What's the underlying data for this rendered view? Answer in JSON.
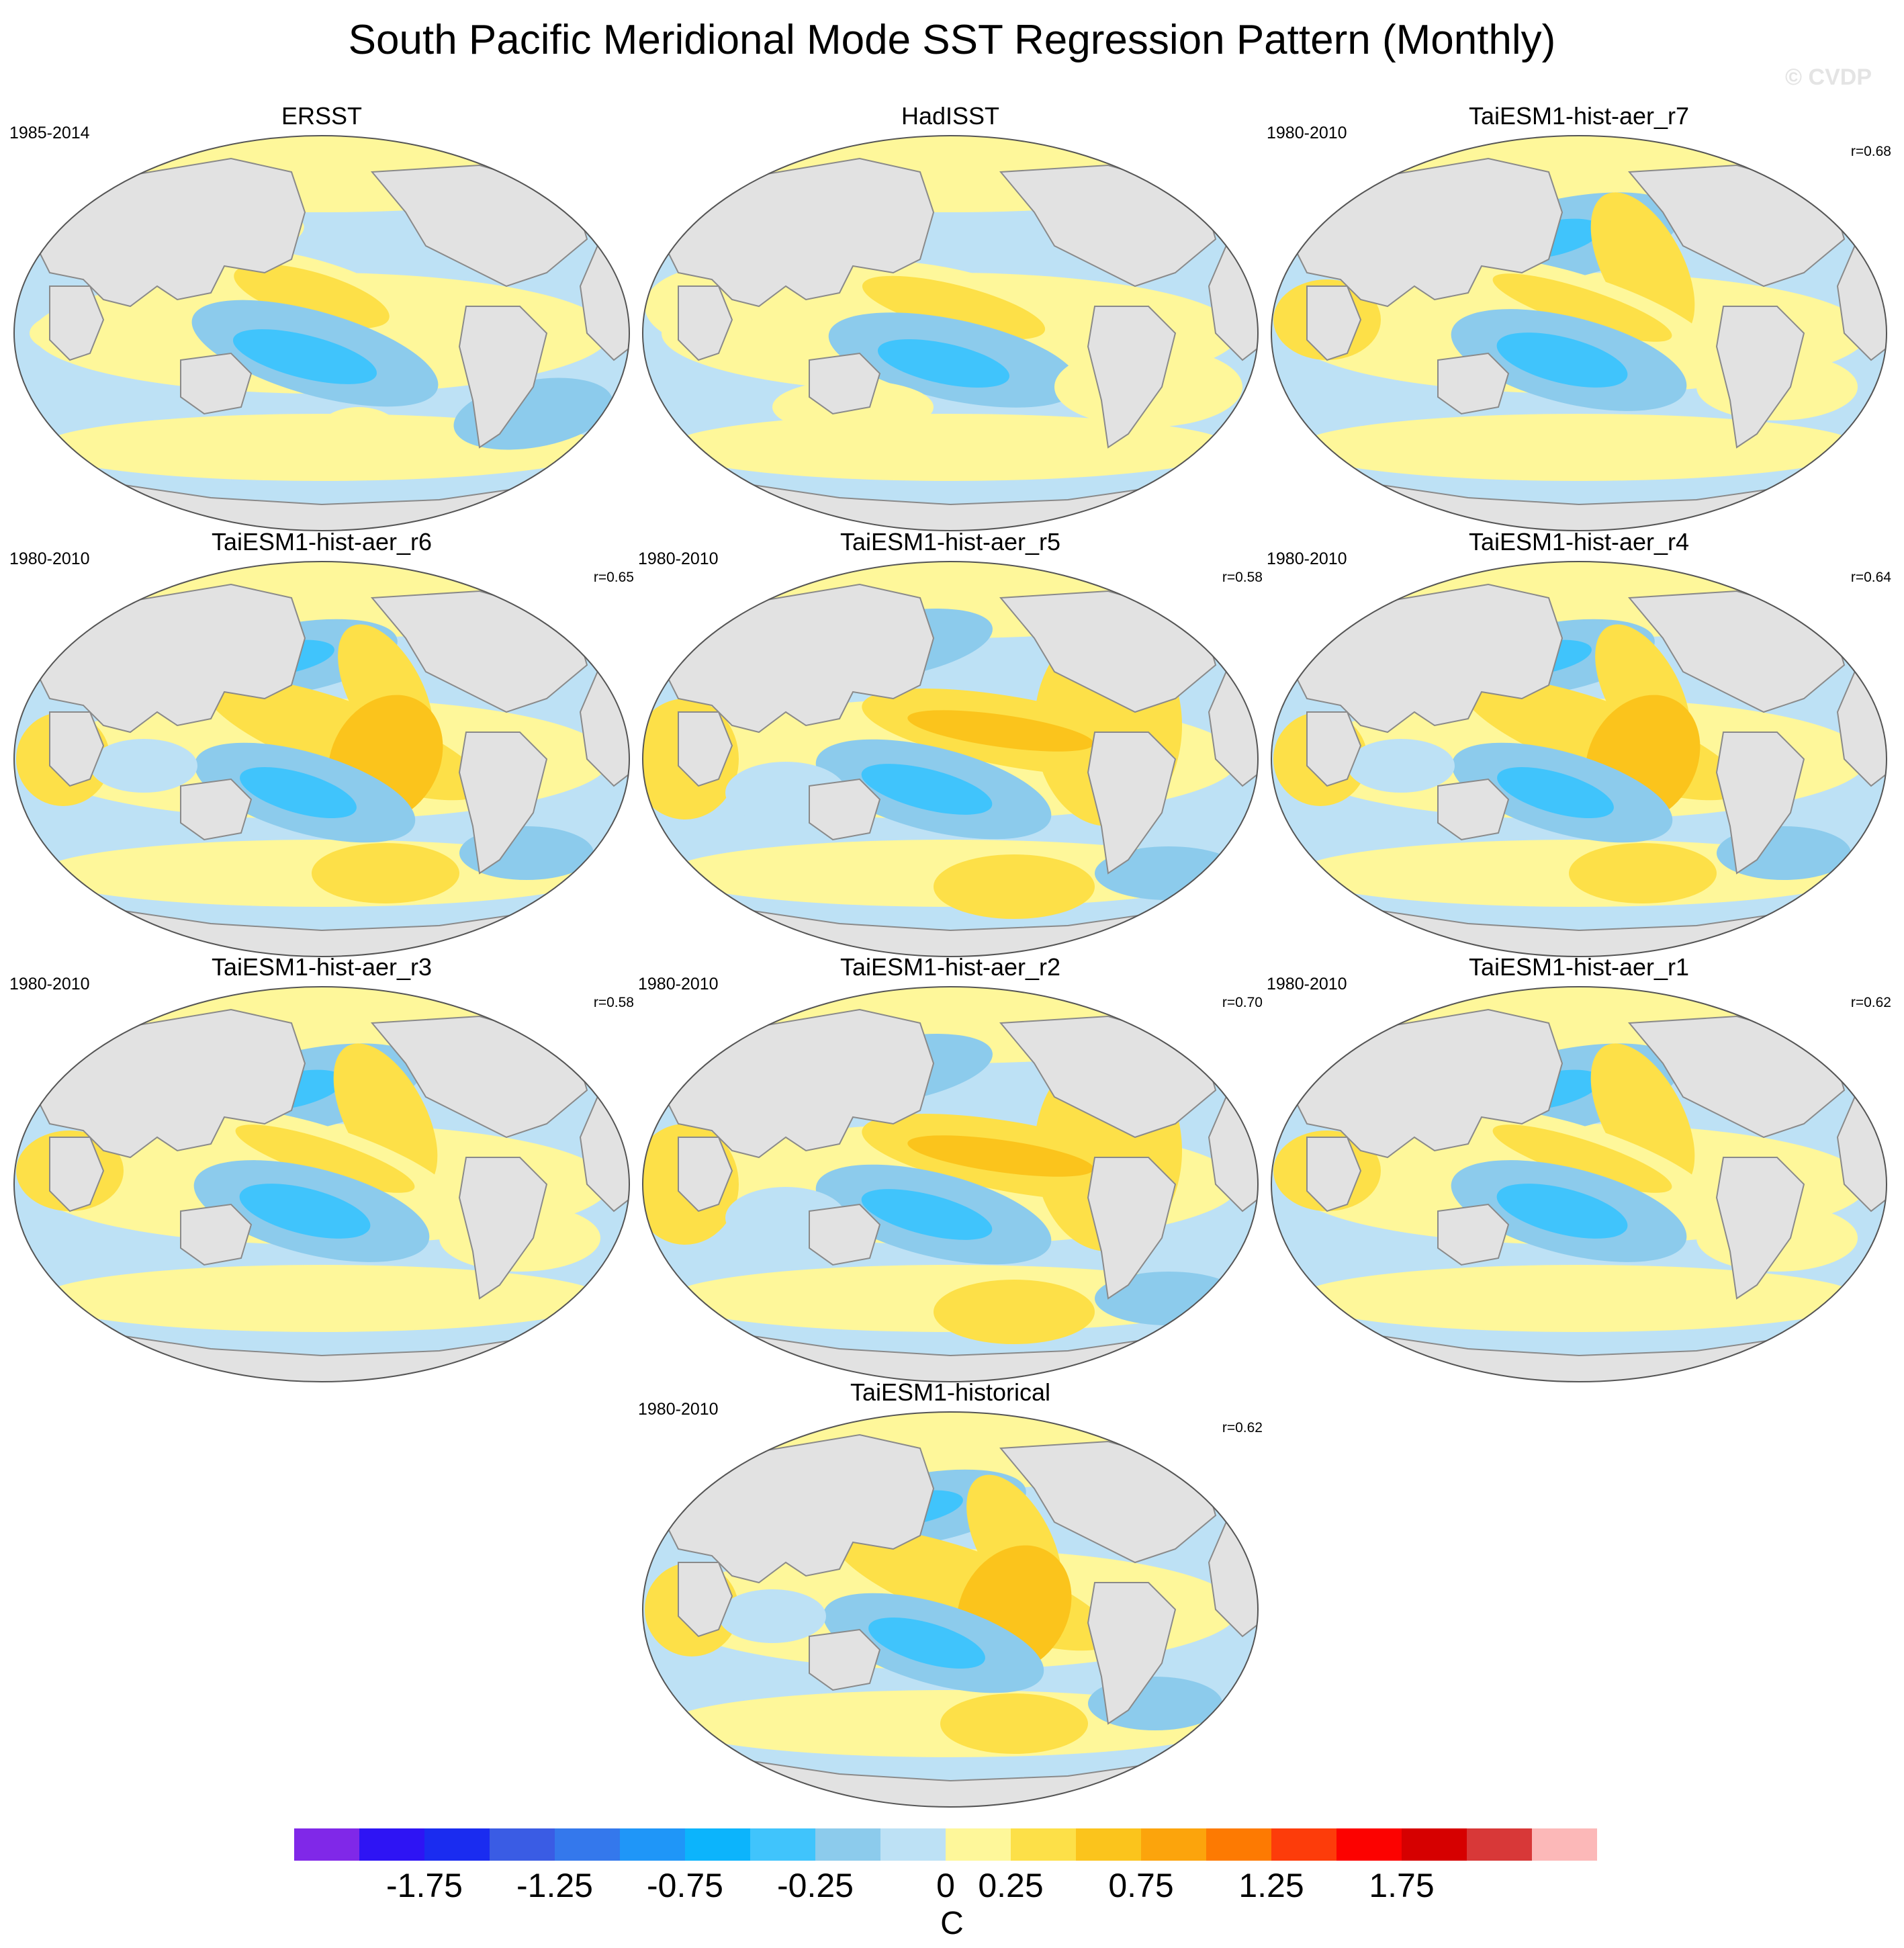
{
  "title": "South Pacific Meridional Mode SST Regression Pattern (Monthly)",
  "watermark": "© CVDP",
  "colors": {
    "land": "#e2e2e2",
    "coast": "#8a8a8a",
    "ocean_neutral_neg": "#bde1f5",
    "ocean_neutral_pos": "#fef79a"
  },
  "panels": [
    {
      "name": "ERSST",
      "period": "1985-2014",
      "corr": "",
      "style": 0
    },
    {
      "name": "HadISST",
      "period": "",
      "corr": "",
      "style": 1
    },
    {
      "name": "TaiESM1-hist-aer_r7",
      "period": "1980-2010",
      "corr": "r=0.68",
      "style": 2
    },
    {
      "name": "TaiESM1-hist-aer_r6",
      "period": "1980-2010",
      "corr": "r=0.65",
      "style": 3
    },
    {
      "name": "TaiESM1-hist-aer_r5",
      "period": "1980-2010",
      "corr": "r=0.58",
      "style": 4
    },
    {
      "name": "TaiESM1-hist-aer_r4",
      "period": "1980-2010",
      "corr": "r=0.64",
      "style": 3
    },
    {
      "name": "TaiESM1-hist-aer_r3",
      "period": "1980-2010",
      "corr": "r=0.58",
      "style": 2
    },
    {
      "name": "TaiESM1-hist-aer_r2",
      "period": "1980-2010",
      "corr": "r=0.70",
      "style": 4
    },
    {
      "name": "TaiESM1-hist-aer_r1",
      "period": "1980-2010",
      "corr": "r=0.62",
      "style": 2
    },
    {
      "name": "TaiESM1-historical",
      "period": "1980-2010",
      "corr": "r=0.62",
      "style": 3
    }
  ],
  "colorbar": {
    "colors": [
      "#8028e8",
      "#2e14f4",
      "#1a2cf0",
      "#3a5ce4",
      "#3478ec",
      "#1f96f8",
      "#0cb4fc",
      "#40c4fc",
      "#8ccbec",
      "#bde1f5",
      "#fef79a",
      "#fde048",
      "#fbc41c",
      "#fca40c",
      "#fd7a02",
      "#fd3c0a",
      "#fc0200",
      "#d60000",
      "#d83838",
      "#fcb8b8"
    ],
    "labels": [
      "-1.75",
      "-1.25",
      "-0.75",
      "-0.25",
      "0",
      "0.25",
      "0.75",
      "1.25",
      "1.75"
    ],
    "label_boundaries": [
      2,
      4,
      6,
      8,
      10,
      11,
      13,
      15,
      17
    ],
    "units": "C"
  }
}
